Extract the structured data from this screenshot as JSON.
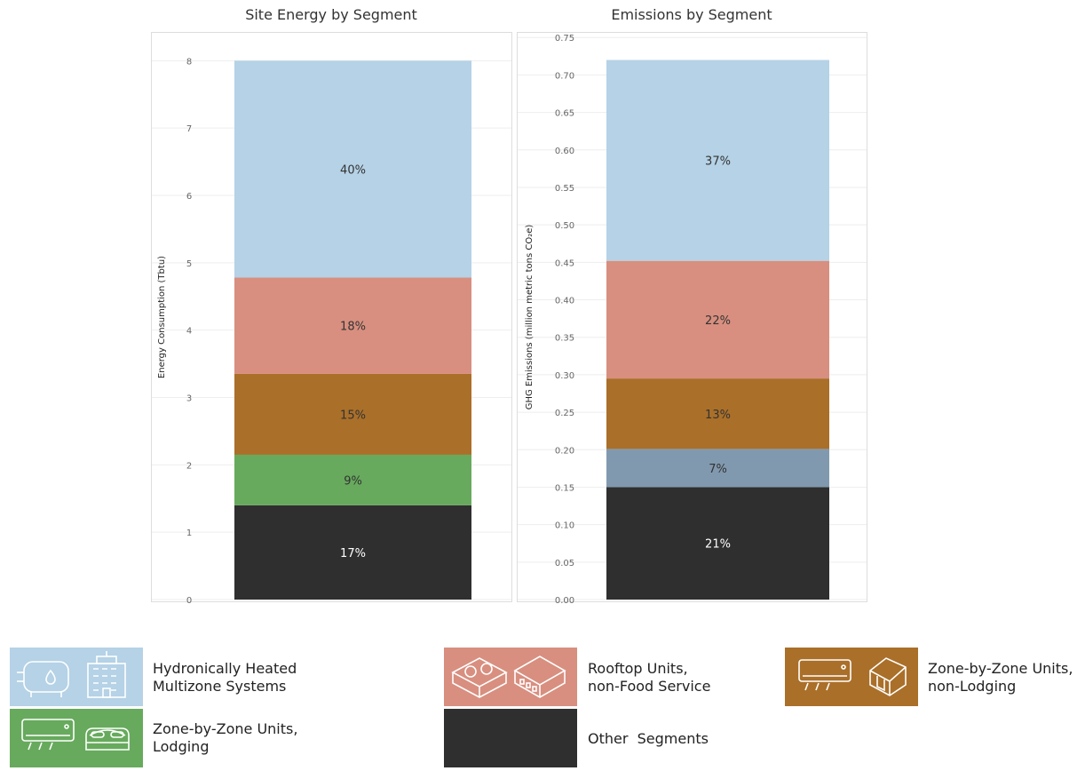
{
  "colors": {
    "hydronic": "#b5d2e6",
    "rooftop": "#d88f7f",
    "zone_nonlodging": "#aa6f29",
    "zone_lodging": "#67aa5d",
    "gray_blue": "#8199ae",
    "other": "#2f2f2f",
    "grid": "#eeeeee",
    "axis_text": "#666666"
  },
  "chart_data": [
    {
      "type": "bar",
      "stacked": true,
      "title": "Site Energy by Segment",
      "ylabel": "Energy Consumption (Tbtu)",
      "ylim": [
        0,
        8.4
      ],
      "yticks": [
        "0",
        "1",
        "2",
        "3",
        "4",
        "5",
        "6",
        "7",
        "8"
      ],
      "grid": true,
      "segments": [
        {
          "color_key": "other",
          "from": 0,
          "to": 1.4,
          "label": "17%"
        },
        {
          "color_key": "zone_lodging",
          "from": 1.4,
          "to": 2.15,
          "label": "9%"
        },
        {
          "color_key": "zone_nonlodging",
          "from": 2.15,
          "to": 3.35,
          "label": "15%"
        },
        {
          "color_key": "rooftop",
          "from": 3.35,
          "to": 4.78,
          "label": "18%"
        },
        {
          "color_key": "hydronic",
          "from": 4.78,
          "to": 8.0,
          "label": "40%"
        }
      ]
    },
    {
      "type": "bar",
      "stacked": true,
      "title": "Emissions by Segment",
      "ylabel": "GHG Emissions (million metric tons CO₂e)",
      "ylim": [
        0,
        0.755
      ],
      "yticks": [
        "0.00",
        "0.05",
        "0.10",
        "0.15",
        "0.20",
        "0.25",
        "0.30",
        "0.35",
        "0.40",
        "0.45",
        "0.50",
        "0.55",
        "0.60",
        "0.65",
        "0.70",
        "0.75"
      ],
      "grid": true,
      "segments": [
        {
          "color_key": "other",
          "from": 0,
          "to": 0.15,
          "label": "21%"
        },
        {
          "color_key": "gray_blue",
          "from": 0.15,
          "to": 0.201,
          "label": "7%"
        },
        {
          "color_key": "zone_nonlodging",
          "from": 0.201,
          "to": 0.295,
          "label": "13%"
        },
        {
          "color_key": "rooftop",
          "from": 0.295,
          "to": 0.452,
          "label": "22%"
        },
        {
          "color_key": "hydronic",
          "from": 0.452,
          "to": 0.72,
          "label": "37%"
        }
      ]
    }
  ],
  "legend": [
    {
      "line1": "Hydronically Heated",
      "line2": "Multizone Systems",
      "color_key": "hydronic",
      "icons": [
        "water-heater-icon",
        "building-icon"
      ]
    },
    {
      "line1": "Rooftop Units,",
      "line2": "non-Food Service",
      "color_key": "rooftop",
      "icons": [
        "rooftop-unit-icon",
        "rooftop-box-icon"
      ]
    },
    {
      "line1": "Zone-by-Zone Units,",
      "line2": "non-Lodging",
      "color_key": "zone_nonlodging",
      "icons": [
        "wall-ac-icon",
        "house-icon"
      ]
    },
    {
      "line1": "Zone-by-Zone Units,",
      "line2": "Lodging",
      "color_key": "zone_lodging",
      "icons": [
        "wall-ac-icon",
        "bed-icon"
      ]
    },
    {
      "line1": "Other  Segments",
      "line2": "",
      "color_key": "other",
      "icons": []
    }
  ]
}
